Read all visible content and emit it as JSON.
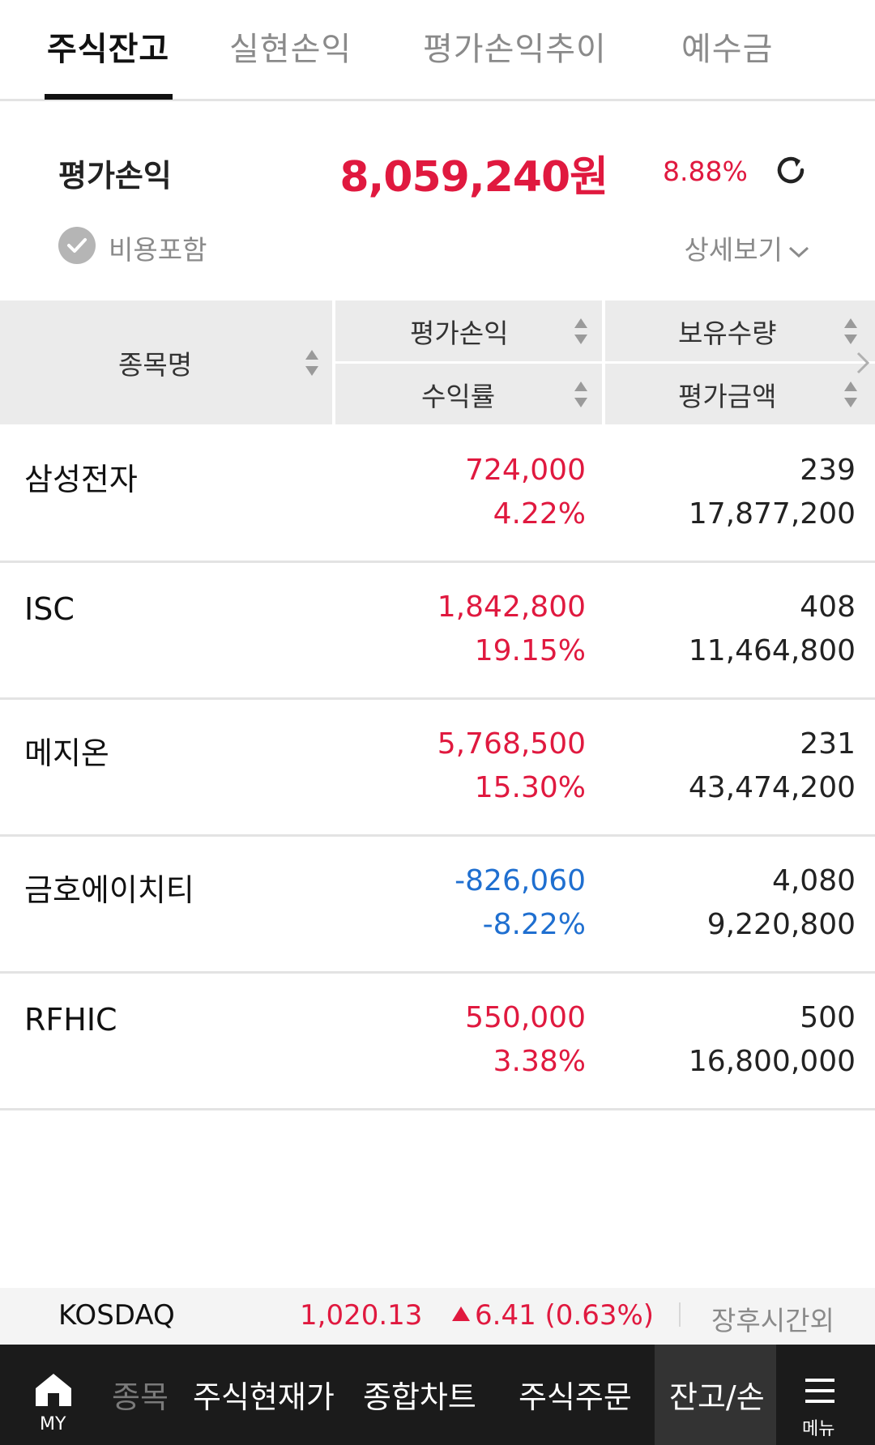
{
  "tabs": [
    {
      "label": "주식잔고",
      "active": true
    },
    {
      "label": "실현손익"
    },
    {
      "label": "평가손익추이"
    },
    {
      "label": "예수금"
    }
  ],
  "summary": {
    "label": "평가손익",
    "value": "8,059,240원",
    "rate": "8.88%",
    "fee_label": "비용포함",
    "detail_label": "상세보기"
  },
  "table_header": {
    "name": "종목명",
    "pl": "평가손익",
    "rate": "수익률",
    "qty": "보유수량",
    "amount": "평가금액"
  },
  "rows": [
    {
      "name": "삼성전자",
      "pl": "724,000",
      "rate": "4.22%",
      "qty": "239",
      "amount": "17,877,200",
      "direction": "up"
    },
    {
      "name": "ISC",
      "pl": "1,842,800",
      "rate": "19.15%",
      "qty": "408",
      "amount": "11,464,800",
      "direction": "up"
    },
    {
      "name": "메지온",
      "pl": "5,768,500",
      "rate": "15.30%",
      "qty": "231",
      "amount": "43,474,200",
      "direction": "up"
    },
    {
      "name": "금호에이치티",
      "pl": "-826,060",
      "rate": "-8.22%",
      "qty": "4,080",
      "amount": "9,220,800",
      "direction": "down"
    },
    {
      "name": "RFHIC",
      "pl": "550,000",
      "rate": "3.38%",
      "qty": "500",
      "amount": "16,800,000",
      "direction": "up"
    }
  ],
  "index": {
    "name": "KOSDAQ",
    "value": "1,020.13",
    "change": "6.41 (0.63%)",
    "status": "장후시간외"
  },
  "bottom_nav": {
    "my": "MY",
    "items": [
      "종목",
      "주식현재가",
      "종합차트",
      "주식주문",
      "잔고/손"
    ],
    "menu": "메뉴"
  },
  "colors": {
    "up": "#e0193f",
    "down": "#1f6fd0",
    "accent": "#111111"
  }
}
